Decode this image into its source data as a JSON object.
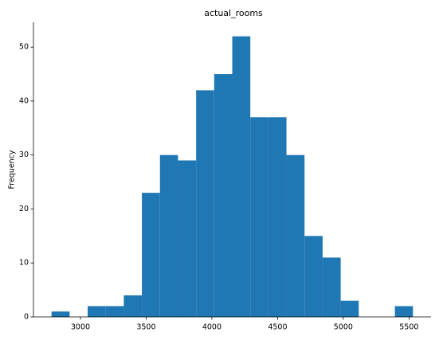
{
  "chart_data": {
    "type": "histogram",
    "title": "actual_rooms",
    "y_label": "Frequency",
    "bins": [
      2780,
      2917.5,
      3055,
      3192.5,
      3330,
      3467.5,
      3605,
      3742.5,
      3880,
      4017.5,
      4155,
      4292.5,
      4430,
      4567.5,
      4705,
      4842.5,
      4980,
      5117.5,
      5255,
      5392.5,
      5530
    ],
    "counts": [
      1,
      0,
      2,
      2,
      4,
      23,
      30,
      29,
      42,
      45,
      52,
      37,
      37,
      30,
      15,
      11,
      3,
      0,
      0,
      2
    ],
    "color": "#1f77b4",
    "xlim": [
      2642.5,
      5667.5
    ],
    "xticks": [
      3000,
      3500,
      4000,
      4500,
      5000,
      5500
    ],
    "ylim": [
      0,
      54.6
    ],
    "yticks": [
      0,
      10,
      20,
      30,
      40,
      50
    ]
  }
}
